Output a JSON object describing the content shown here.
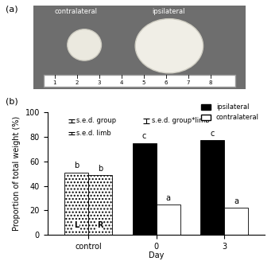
{
  "panel_labels": [
    "(a)",
    "(b)"
  ],
  "photo": {
    "labels": [
      "contralateral",
      "ipsilateral"
    ],
    "ruler_ticks": [
      1,
      2,
      3,
      4,
      5,
      6,
      7,
      8
    ]
  },
  "chart_data": {
    "type": "bar",
    "x_label": "Day",
    "y_label": "Proportion of total weight (%)",
    "categories": [
      "control",
      "0",
      "3"
    ],
    "ylim": [
      0,
      100
    ],
    "yticks": [
      0,
      20,
      40,
      60,
      80,
      100
    ],
    "legend": "upper right",
    "series": [
      {
        "name": "ipsilateral",
        "color": "#000000",
        "values": [
          null,
          75,
          77
        ],
        "letters": [
          null,
          "c",
          "c"
        ]
      },
      {
        "name": "contralateral",
        "color": "#ffffff",
        "values": [
          null,
          25,
          22
        ],
        "letters": [
          null,
          "a",
          "a"
        ]
      }
    ],
    "control_bars": {
      "labels": [
        "L",
        "R"
      ],
      "values": [
        51,
        49
      ],
      "letters": [
        "b",
        "b"
      ],
      "color": "#ffffff"
    },
    "sed": [
      {
        "label": "s.e.d. group",
        "value": 3
      },
      {
        "label": "s.e.d. limb",
        "value": 2
      },
      {
        "label": "s.e.d. group*limb",
        "value": 4
      }
    ]
  }
}
